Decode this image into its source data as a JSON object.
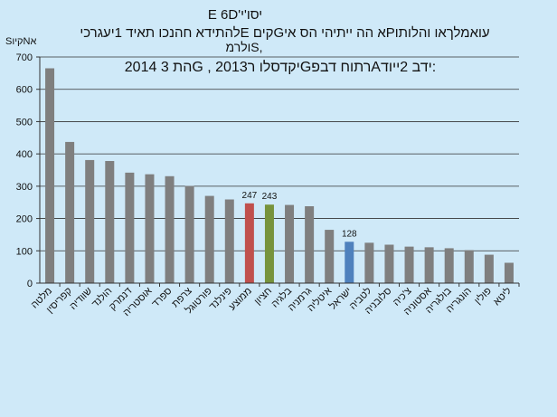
{
  "chart_data": {
    "type": "bar",
    "title_lines": [
      "E 6D'יסו'י",
      "להתידא חהנכו תאיד 1יעגרכיE קיםGא הה ייתיהי הס איPעואמלךאו והלותו",
      "ולרמS,",
      "2014 הת  3G , 2013יקדסלו רGרתוח דבפAידב 2ייוד:"
    ],
    "ylabel": "SקיוNא",
    "ylim": [
      0,
      700
    ],
    "yticks": [
      0,
      100,
      200,
      300,
      400,
      500,
      600,
      700
    ],
    "grid": true,
    "categories": [
      "מלטה",
      "קפריסין",
      "שוודיה",
      "הולנד",
      "דנמרק",
      "אוסטריה",
      "ספרד",
      "צרפת",
      "פורטוגל",
      "פינלנד",
      "ממוצע",
      "חציון",
      "בלגיה",
      "גרמניה",
      "איטליה",
      "ישראל",
      "לטביה",
      "סלובניה",
      "צ'כיה",
      "אסטוניה",
      "בולגריה",
      "הונגריה",
      "פולין",
      "ליטא"
    ],
    "values": [
      665,
      437,
      381,
      378,
      342,
      337,
      331,
      301,
      270,
      259,
      247,
      243,
      242,
      238,
      165,
      128,
      125,
      119,
      113,
      111,
      108,
      102,
      88,
      63
    ],
    "data_labels": [
      {
        "index": 10,
        "text": "247"
      },
      {
        "index": 11,
        "text": "243"
      },
      {
        "index": 15,
        "text": "128"
      }
    ],
    "colors": {
      "default": "#7f7f7f",
      "highlight": {
        "10": "#c0504d",
        "11": "#77933c",
        "15": "#4f81bd"
      }
    }
  }
}
